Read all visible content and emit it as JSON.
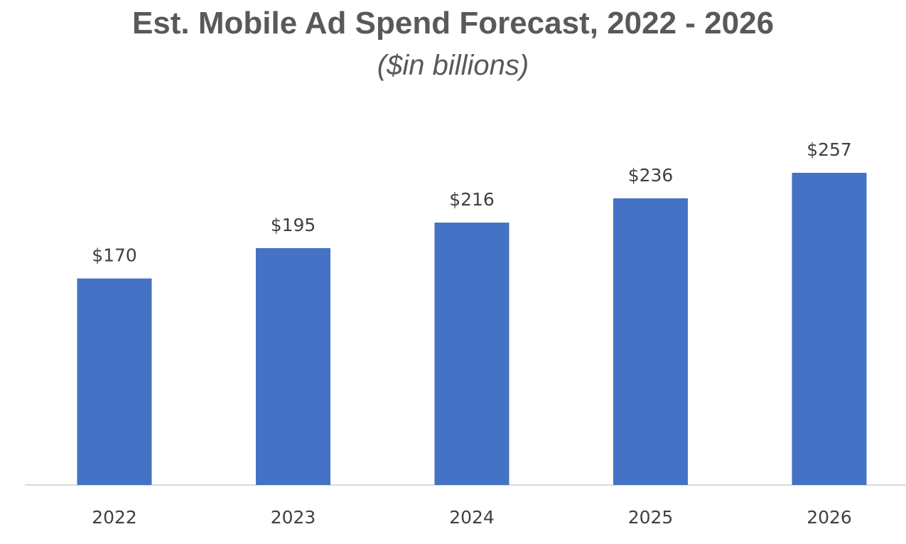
{
  "chart_data": {
    "type": "bar",
    "title": "Est. Mobile Ad Spend Forecast, 2022 - 2026",
    "subtitle": "($in billions)",
    "categories": [
      "2022",
      "2023",
      "2024",
      "2025",
      "2026"
    ],
    "values": [
      170,
      195,
      216,
      236,
      257
    ],
    "value_labels": [
      "$170",
      "$195",
      "$216",
      "$236",
      "$257"
    ],
    "ylim": [
      0,
      257
    ],
    "grid": false,
    "legend": "none",
    "bar_color": "#4472C4",
    "axis_color": "#D9D9D9"
  }
}
